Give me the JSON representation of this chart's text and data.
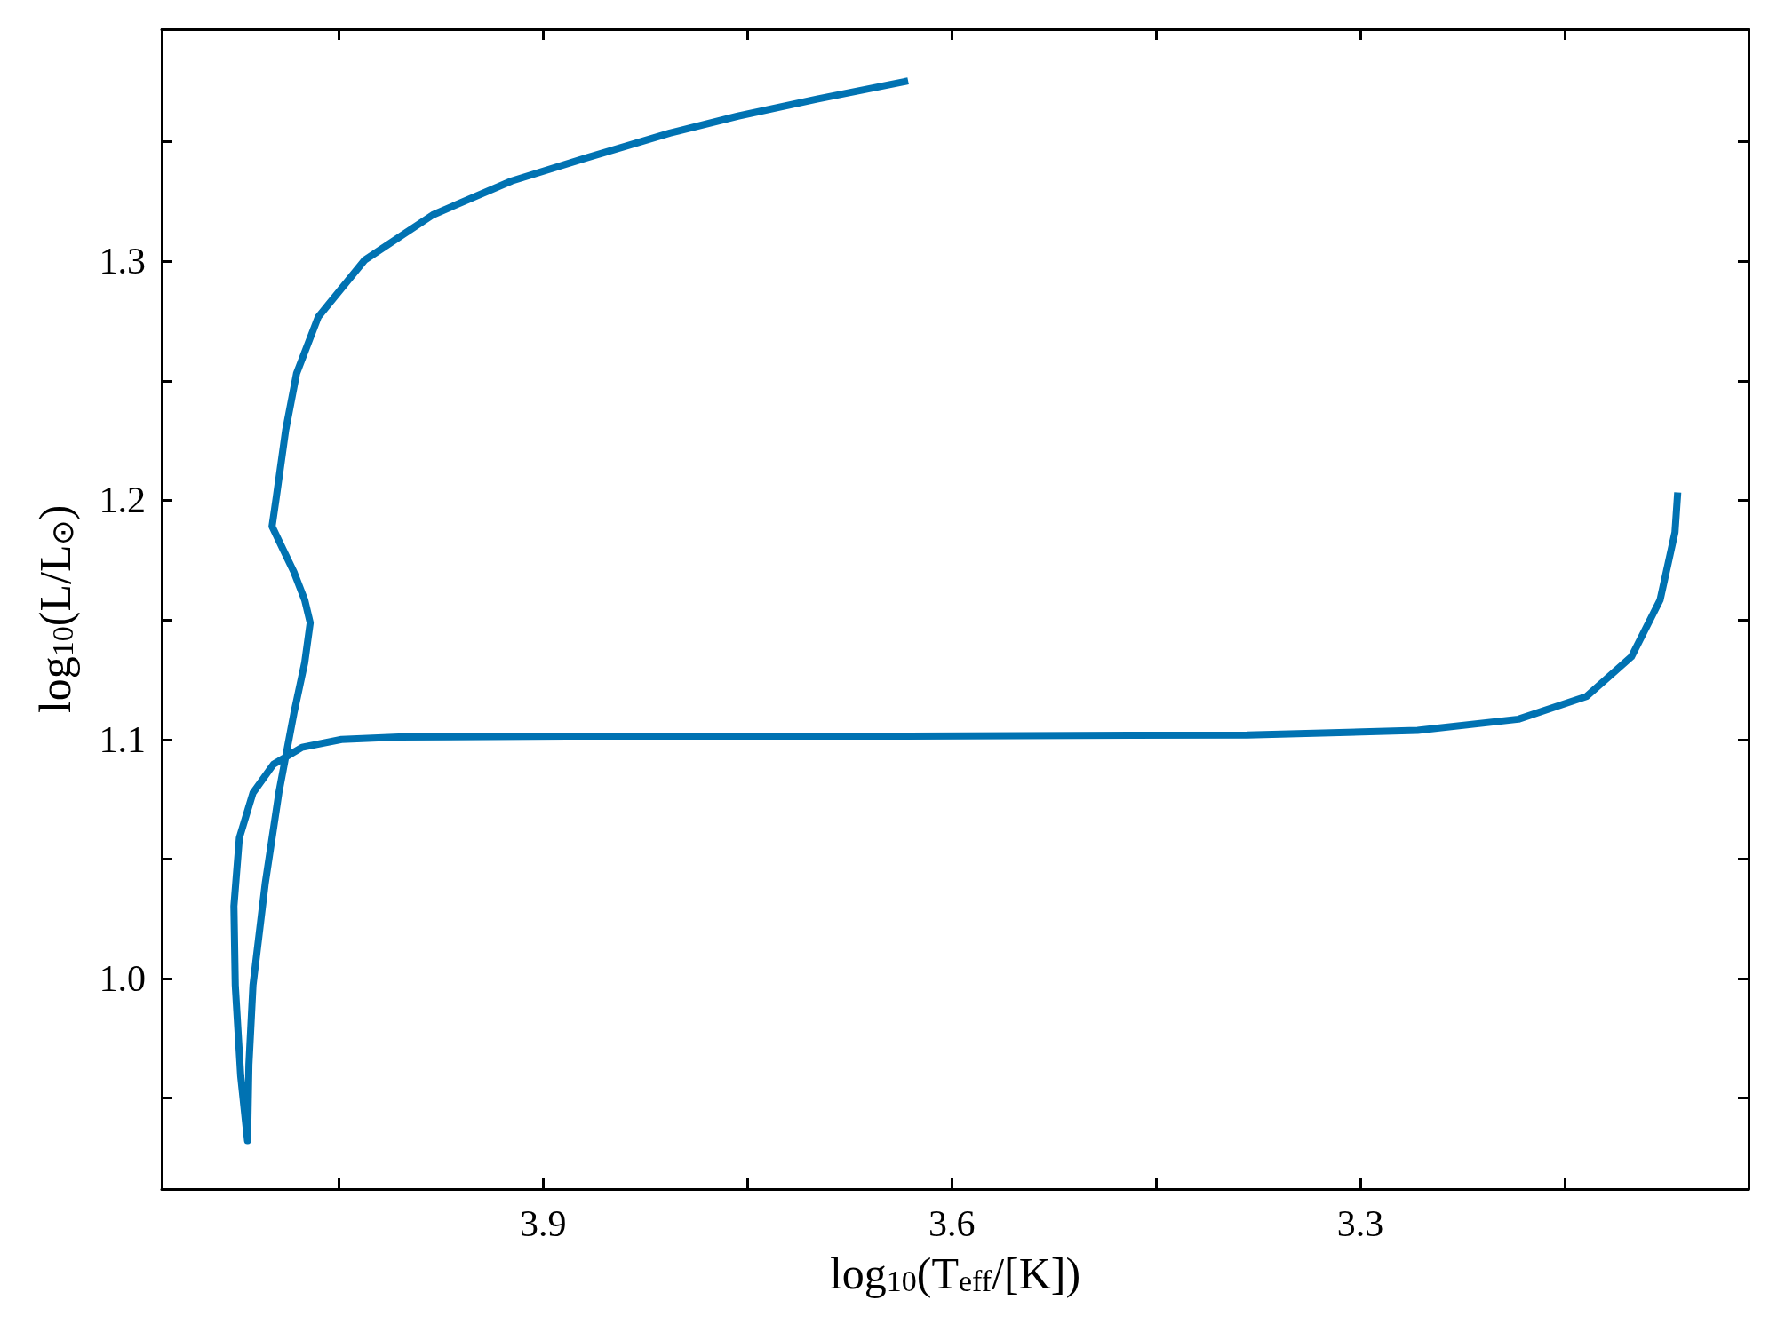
{
  "chart_data": {
    "type": "line",
    "xlabel": "log$_{10}$(T$_{eff}$/[K])",
    "ylabel": "log$_{10}$(L/L$_{⊙}$)",
    "xlim": [
      4.18,
      3.015
    ],
    "ylim": [
      0.912,
      1.397
    ],
    "xticks": [
      {
        "value": 4.05,
        "label": null
      },
      3.9,
      {
        "value": 3.75,
        "label": null
      },
      3.6,
      {
        "value": 3.45,
        "label": null
      },
      3.3,
      {
        "value": 3.15,
        "label": null
      }
    ],
    "yticks": [
      {
        "value": 0.95,
        "label": null
      },
      {
        "value": 1,
        "label": "1.0"
      },
      {
        "value": 1.05,
        "label": null
      },
      1.1,
      {
        "value": 1.15,
        "label": null
      },
      1.2,
      {
        "value": 1.25,
        "label": null
      },
      1.3,
      {
        "value": 1.35,
        "label": null
      }
    ],
    "series": [
      {
        "color": "#0072b2",
        "x": [
          3.067,
          3.069,
          3.08,
          3.101,
          3.134,
          3.184,
          3.258,
          3.383,
          3.632,
          3.882,
          4.006,
          4.048,
          4.077,
          4.098,
          4.113,
          4.123,
          4.127,
          4.126,
          4.122,
          4.117,
          4.116,
          4.113,
          4.104,
          4.094,
          4.083,
          4.075,
          4.071,
          4.075,
          4.083,
          4.091,
          4.099,
          4.096,
          4.089,
          4.081,
          4.065,
          4.031,
          3.981,
          3.923,
          3.869,
          3.807,
          3.757,
          3.699,
          3.632
        ],
        "values": [
          1.2033,
          1.1867,
          1.1583,
          1.1346,
          1.118,
          1.1085,
          1.1038,
          1.1019,
          1.1014,
          1.1014,
          1.101,
          1.1,
          1.0967,
          1.0896,
          1.0777,
          1.0588,
          1.0303,
          0.9972,
          0.9592,
          0.9322,
          0.964,
          0.9972,
          1.0398,
          1.0777,
          1.1109,
          1.1322,
          1.1488,
          1.1583,
          1.1701,
          1.1796,
          1.1891,
          1.2009,
          1.2294,
          1.2531,
          1.2768,
          1.3005,
          1.3194,
          1.3336,
          1.3431,
          1.3536,
          1.3607,
          1.3678,
          1.3754
        ]
      }
    ]
  }
}
